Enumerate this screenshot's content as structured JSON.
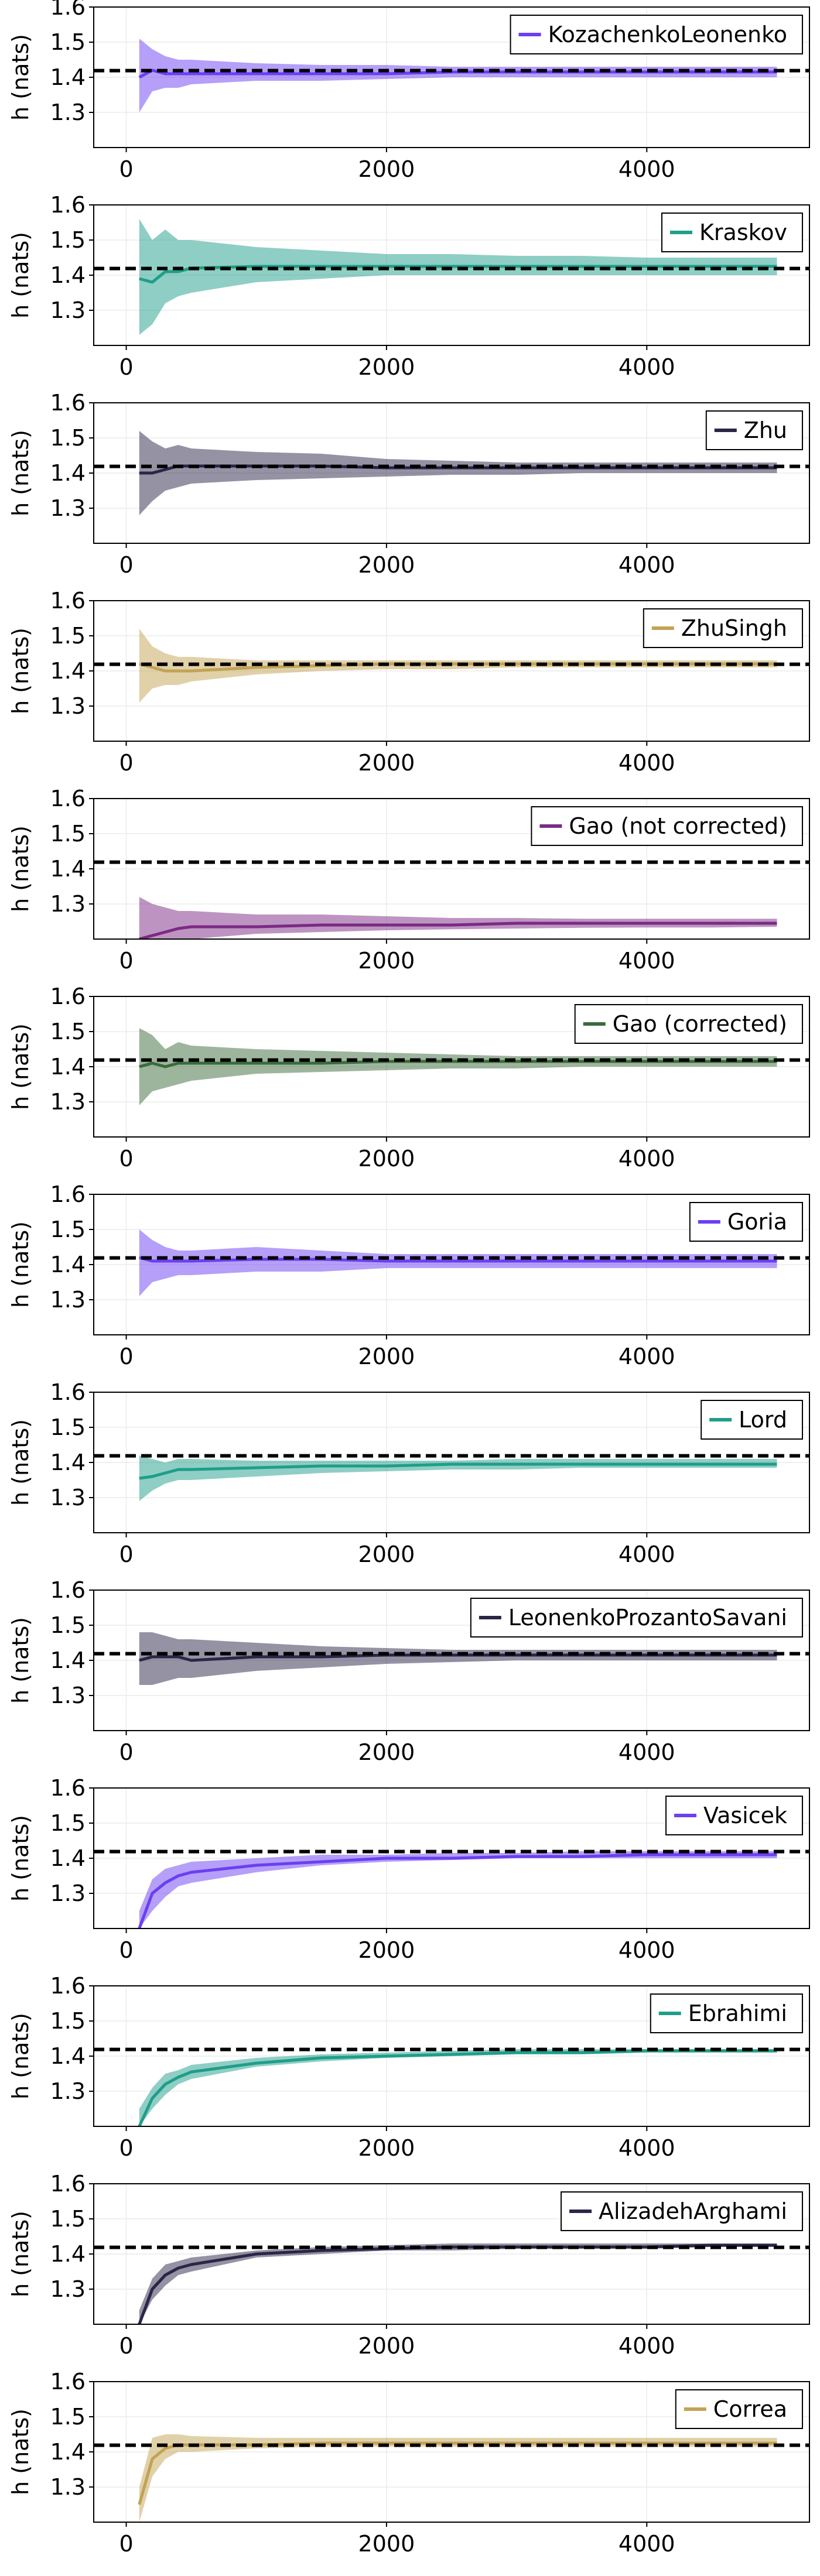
{
  "figure": {
    "ylabel": "h (nats)",
    "reference_label": "",
    "reference_color": "#000000",
    "band_opacity": 0.5
  },
  "chart_data": [
    {
      "type": "line",
      "name": "KozachenkoLeonenko",
      "color": "#6b3ff2",
      "xlim": [
        -250,
        5250
      ],
      "ylim": [
        1.2,
        1.6
      ],
      "xticks": [
        0,
        2000,
        4000
      ],
      "yticks": [
        1.3,
        1.4,
        1.5,
        1.6
      ],
      "reference_y": 1.419,
      "legend_position": "top-right",
      "grid": true,
      "x": [
        100,
        200,
        300,
        400,
        500,
        1000,
        1500,
        2000,
        2500,
        3000,
        3500,
        4000,
        4500,
        5000
      ],
      "mean": [
        1.4,
        1.42,
        1.41,
        1.41,
        1.41,
        1.41,
        1.41,
        1.41,
        1.415,
        1.415,
        1.415,
        1.415,
        1.415,
        1.415
      ],
      "lower": [
        1.3,
        1.36,
        1.37,
        1.37,
        1.38,
        1.39,
        1.39,
        1.395,
        1.4,
        1.4,
        1.4,
        1.4,
        1.4,
        1.4
      ],
      "upper": [
        1.51,
        1.48,
        1.46,
        1.45,
        1.45,
        1.44,
        1.435,
        1.435,
        1.43,
        1.43,
        1.43,
        1.43,
        1.43,
        1.43
      ]
    },
    {
      "type": "line",
      "name": "Kraskov",
      "color": "#1f9e89",
      "xlim": [
        -250,
        5250
      ],
      "ylim": [
        1.2,
        1.6
      ],
      "xticks": [
        0,
        2000,
        4000
      ],
      "yticks": [
        1.3,
        1.4,
        1.5,
        1.6
      ],
      "reference_y": 1.419,
      "legend_position": "top-right",
      "grid": true,
      "x": [
        100,
        200,
        300,
        400,
        500,
        1000,
        1500,
        2000,
        2500,
        3000,
        3500,
        4000,
        4500,
        5000
      ],
      "mean": [
        1.39,
        1.38,
        1.41,
        1.41,
        1.42,
        1.425,
        1.425,
        1.425,
        1.425,
        1.425,
        1.425,
        1.425,
        1.425,
        1.425
      ],
      "lower": [
        1.23,
        1.26,
        1.32,
        1.34,
        1.35,
        1.38,
        1.39,
        1.4,
        1.4,
        1.4,
        1.4,
        1.4,
        1.4,
        1.4
      ],
      "upper": [
        1.56,
        1.5,
        1.53,
        1.5,
        1.5,
        1.48,
        1.47,
        1.46,
        1.46,
        1.455,
        1.455,
        1.45,
        1.45,
        1.45
      ]
    },
    {
      "type": "line",
      "name": "Zhu",
      "color": "#2a2647",
      "xlim": [
        -250,
        5250
      ],
      "ylim": [
        1.2,
        1.6
      ],
      "xticks": [
        0,
        2000,
        4000
      ],
      "yticks": [
        1.3,
        1.4,
        1.5,
        1.6
      ],
      "reference_y": 1.419,
      "legend_position": "top-right",
      "grid": true,
      "x": [
        100,
        200,
        300,
        400,
        500,
        1000,
        1500,
        2000,
        2500,
        3000,
        3500,
        4000,
        4500,
        5000
      ],
      "mean": [
        1.4,
        1.4,
        1.41,
        1.42,
        1.42,
        1.42,
        1.42,
        1.415,
        1.415,
        1.415,
        1.415,
        1.415,
        1.415,
        1.415
      ],
      "lower": [
        1.28,
        1.32,
        1.35,
        1.36,
        1.37,
        1.38,
        1.385,
        1.39,
        1.395,
        1.395,
        1.4,
        1.4,
        1.4,
        1.4
      ],
      "upper": [
        1.52,
        1.49,
        1.47,
        1.48,
        1.47,
        1.46,
        1.455,
        1.44,
        1.435,
        1.43,
        1.43,
        1.43,
        1.43,
        1.43
      ]
    },
    {
      "type": "line",
      "name": "ZhuSingh",
      "color": "#c2a354",
      "xlim": [
        -250,
        5250
      ],
      "ylim": [
        1.2,
        1.6
      ],
      "xticks": [
        0,
        2000,
        4000
      ],
      "yticks": [
        1.3,
        1.4,
        1.5,
        1.6
      ],
      "reference_y": 1.419,
      "legend_position": "top-right",
      "grid": true,
      "x": [
        100,
        200,
        300,
        400,
        500,
        1000,
        1500,
        2000,
        2500,
        3000,
        3500,
        4000,
        4500,
        5000
      ],
      "mean": [
        1.42,
        1.41,
        1.4,
        1.4,
        1.4,
        1.41,
        1.415,
        1.42,
        1.42,
        1.42,
        1.42,
        1.42,
        1.42,
        1.42
      ],
      "lower": [
        1.31,
        1.35,
        1.36,
        1.36,
        1.37,
        1.39,
        1.4,
        1.405,
        1.405,
        1.41,
        1.41,
        1.41,
        1.41,
        1.41
      ],
      "upper": [
        1.52,
        1.47,
        1.45,
        1.44,
        1.44,
        1.43,
        1.43,
        1.43,
        1.43,
        1.43,
        1.43,
        1.43,
        1.43,
        1.43
      ]
    },
    {
      "type": "line",
      "name": "Gao (not corrected)",
      "color": "#7b2a84",
      "xlim": [
        -250,
        5250
      ],
      "ylim": [
        1.2,
        1.6
      ],
      "xticks": [
        0,
        2000,
        4000
      ],
      "yticks": [
        1.3,
        1.4,
        1.5,
        1.6
      ],
      "reference_y": 1.419,
      "legend_position": "top-right",
      "grid": true,
      "x": [
        100,
        200,
        300,
        400,
        500,
        1000,
        1500,
        2000,
        2500,
        3000,
        3500,
        4000,
        4500,
        5000
      ],
      "mean": [
        1.2,
        1.21,
        1.22,
        1.23,
        1.235,
        1.235,
        1.24,
        1.24,
        1.24,
        1.245,
        1.245,
        1.245,
        1.245,
        1.245
      ],
      "lower": [
        1.2,
        1.2,
        1.2,
        1.2,
        1.2,
        1.215,
        1.22,
        1.225,
        1.228,
        1.23,
        1.232,
        1.233,
        1.233,
        1.235
      ],
      "upper": [
        1.32,
        1.3,
        1.29,
        1.28,
        1.28,
        1.27,
        1.27,
        1.265,
        1.26,
        1.26,
        1.258,
        1.258,
        1.258,
        1.258
      ]
    },
    {
      "type": "line",
      "name": "Gao (corrected)",
      "color": "#3b6b3b",
      "xlim": [
        -250,
        5250
      ],
      "ylim": [
        1.2,
        1.6
      ],
      "xticks": [
        0,
        2000,
        4000
      ],
      "yticks": [
        1.3,
        1.4,
        1.5,
        1.6
      ],
      "reference_y": 1.419,
      "legend_position": "top-right",
      "grid": true,
      "x": [
        100,
        200,
        300,
        400,
        500,
        1000,
        1500,
        2000,
        2500,
        3000,
        3500,
        4000,
        4500,
        5000
      ],
      "mean": [
        1.4,
        1.41,
        1.4,
        1.41,
        1.41,
        1.41,
        1.41,
        1.415,
        1.415,
        1.415,
        1.415,
        1.415,
        1.415,
        1.415
      ],
      "lower": [
        1.29,
        1.33,
        1.34,
        1.35,
        1.36,
        1.38,
        1.385,
        1.39,
        1.395,
        1.395,
        1.4,
        1.4,
        1.4,
        1.4
      ],
      "upper": [
        1.51,
        1.49,
        1.45,
        1.47,
        1.46,
        1.45,
        1.445,
        1.44,
        1.435,
        1.43,
        1.43,
        1.43,
        1.43,
        1.43
      ]
    },
    {
      "type": "line",
      "name": "Goria",
      "color": "#6b3ff2",
      "xlim": [
        -250,
        5250
      ],
      "ylim": [
        1.2,
        1.6
      ],
      "xticks": [
        0,
        2000,
        4000
      ],
      "yticks": [
        1.3,
        1.4,
        1.5,
        1.6
      ],
      "reference_y": 1.419,
      "legend_position": "top-right",
      "grid": true,
      "x": [
        100,
        200,
        300,
        400,
        500,
        1000,
        1500,
        2000,
        2500,
        3000,
        3500,
        4000,
        4500,
        5000
      ],
      "mean": [
        1.42,
        1.41,
        1.41,
        1.41,
        1.41,
        1.415,
        1.415,
        1.41,
        1.41,
        1.41,
        1.41,
        1.41,
        1.41,
        1.41
      ],
      "lower": [
        1.31,
        1.35,
        1.36,
        1.37,
        1.37,
        1.38,
        1.38,
        1.39,
        1.39,
        1.39,
        1.39,
        1.39,
        1.39,
        1.39
      ],
      "upper": [
        1.5,
        1.47,
        1.45,
        1.44,
        1.44,
        1.45,
        1.44,
        1.43,
        1.43,
        1.43,
        1.43,
        1.43,
        1.43,
        1.43
      ]
    },
    {
      "type": "line",
      "name": "Lord",
      "color": "#1f9e89",
      "xlim": [
        -250,
        5250
      ],
      "ylim": [
        1.2,
        1.6
      ],
      "xticks": [
        0,
        2000,
        4000
      ],
      "yticks": [
        1.3,
        1.4,
        1.5,
        1.6
      ],
      "reference_y": 1.419,
      "legend_position": "top-right",
      "grid": true,
      "x": [
        100,
        200,
        300,
        400,
        500,
        1000,
        1500,
        2000,
        2500,
        3000,
        3500,
        4000,
        4500,
        5000
      ],
      "mean": [
        1.355,
        1.36,
        1.37,
        1.38,
        1.38,
        1.385,
        1.39,
        1.39,
        1.395,
        1.395,
        1.395,
        1.395,
        1.395,
        1.395
      ],
      "lower": [
        1.29,
        1.32,
        1.34,
        1.35,
        1.35,
        1.36,
        1.37,
        1.375,
        1.38,
        1.38,
        1.385,
        1.385,
        1.385,
        1.385
      ],
      "upper": [
        1.42,
        1.41,
        1.4,
        1.41,
        1.41,
        1.405,
        1.405,
        1.405,
        1.405,
        1.41,
        1.41,
        1.41,
        1.41,
        1.41
      ]
    },
    {
      "type": "line",
      "name": "LeonenkoProzantoSavani",
      "color": "#2a2647",
      "xlim": [
        -250,
        5250
      ],
      "ylim": [
        1.2,
        1.6
      ],
      "xticks": [
        0,
        2000,
        4000
      ],
      "yticks": [
        1.3,
        1.4,
        1.5,
        1.6
      ],
      "reference_y": 1.419,
      "legend_position": "top-right",
      "grid": true,
      "x": [
        100,
        200,
        300,
        400,
        500,
        1000,
        1500,
        2000,
        2500,
        3000,
        3500,
        4000,
        4500,
        5000
      ],
      "mean": [
        1.4,
        1.41,
        1.41,
        1.41,
        1.4,
        1.41,
        1.41,
        1.415,
        1.415,
        1.415,
        1.415,
        1.415,
        1.415,
        1.415
      ],
      "lower": [
        1.33,
        1.33,
        1.34,
        1.35,
        1.35,
        1.37,
        1.38,
        1.39,
        1.395,
        1.4,
        1.4,
        1.4,
        1.4,
        1.4
      ],
      "upper": [
        1.48,
        1.48,
        1.47,
        1.46,
        1.46,
        1.45,
        1.44,
        1.435,
        1.43,
        1.43,
        1.43,
        1.43,
        1.43,
        1.43
      ]
    },
    {
      "type": "line",
      "name": "Vasicek",
      "color": "#6b3ff2",
      "xlim": [
        -250,
        5250
      ],
      "ylim": [
        1.2,
        1.6
      ],
      "xticks": [
        0,
        2000,
        4000
      ],
      "yticks": [
        1.3,
        1.4,
        1.5,
        1.6
      ],
      "reference_y": 1.419,
      "legend_position": "top-right",
      "grid": true,
      "x": [
        100,
        200,
        300,
        400,
        500,
        1000,
        1500,
        2000,
        2500,
        3000,
        3500,
        4000,
        4500,
        5000
      ],
      "mean": [
        1.2,
        1.3,
        1.33,
        1.35,
        1.36,
        1.38,
        1.39,
        1.4,
        1.4,
        1.405,
        1.405,
        1.41,
        1.41,
        1.41
      ],
      "lower": [
        1.2,
        1.25,
        1.29,
        1.32,
        1.33,
        1.36,
        1.38,
        1.39,
        1.395,
        1.4,
        1.4,
        1.4,
        1.4,
        1.4
      ],
      "upper": [
        1.25,
        1.34,
        1.37,
        1.38,
        1.39,
        1.4,
        1.41,
        1.41,
        1.415,
        1.415,
        1.42,
        1.42,
        1.42,
        1.42
      ]
    },
    {
      "type": "line",
      "name": "Ebrahimi",
      "color": "#1f9e89",
      "xlim": [
        -250,
        5250
      ],
      "ylim": [
        1.2,
        1.6
      ],
      "xticks": [
        0,
        2000,
        4000
      ],
      "yticks": [
        1.3,
        1.4,
        1.5,
        1.6
      ],
      "reference_y": 1.419,
      "legend_position": "top-right",
      "grid": true,
      "x": [
        100,
        200,
        300,
        400,
        500,
        1000,
        1500,
        2000,
        2500,
        3000,
        3500,
        4000,
        4500,
        5000
      ],
      "mean": [
        1.2,
        1.28,
        1.32,
        1.34,
        1.355,
        1.38,
        1.395,
        1.4,
        1.405,
        1.41,
        1.41,
        1.415,
        1.415,
        1.415
      ],
      "lower": [
        1.2,
        1.25,
        1.29,
        1.32,
        1.335,
        1.37,
        1.385,
        1.395,
        1.4,
        1.405,
        1.405,
        1.41,
        1.41,
        1.41
      ],
      "upper": [
        1.25,
        1.31,
        1.35,
        1.36,
        1.375,
        1.395,
        1.405,
        1.41,
        1.415,
        1.42,
        1.42,
        1.42,
        1.42,
        1.42
      ]
    },
    {
      "type": "line",
      "name": "AlizadehArghami",
      "color": "#2a2647",
      "xlim": [
        -250,
        5250
      ],
      "ylim": [
        1.2,
        1.6
      ],
      "xticks": [
        0,
        2000,
        4000
      ],
      "yticks": [
        1.3,
        1.4,
        1.5,
        1.6
      ],
      "reference_y": 1.419,
      "legend_position": "top-right",
      "grid": true,
      "x": [
        100,
        200,
        300,
        400,
        500,
        1000,
        1500,
        2000,
        2500,
        3000,
        3500,
        4000,
        4500,
        5000
      ],
      "mean": [
        1.2,
        1.3,
        1.34,
        1.36,
        1.37,
        1.4,
        1.41,
        1.415,
        1.42,
        1.42,
        1.42,
        1.42,
        1.425,
        1.425
      ],
      "lower": [
        1.2,
        1.27,
        1.31,
        1.34,
        1.35,
        1.39,
        1.4,
        1.41,
        1.41,
        1.415,
        1.415,
        1.415,
        1.42,
        1.42
      ],
      "upper": [
        1.24,
        1.33,
        1.37,
        1.38,
        1.39,
        1.41,
        1.42,
        1.425,
        1.43,
        1.43,
        1.43,
        1.43,
        1.43,
        1.43
      ]
    },
    {
      "type": "line",
      "name": "Correa",
      "color": "#c2a354",
      "xlim": [
        -250,
        5250
      ],
      "ylim": [
        1.2,
        1.6
      ],
      "xticks": [
        0,
        2000,
        4000
      ],
      "yticks": [
        1.3,
        1.4,
        1.5,
        1.6
      ],
      "reference_y": 1.419,
      "legend_position": "top-right",
      "grid": true,
      "x": [
        100,
        200,
        300,
        400,
        500,
        1000,
        1500,
        2000,
        2500,
        3000,
        3500,
        4000,
        4500,
        5000
      ],
      "mean": [
        1.25,
        1.38,
        1.41,
        1.42,
        1.42,
        1.42,
        1.425,
        1.425,
        1.425,
        1.425,
        1.425,
        1.425,
        1.425,
        1.425
      ],
      "lower": [
        1.2,
        1.33,
        1.38,
        1.4,
        1.4,
        1.41,
        1.415,
        1.415,
        1.415,
        1.415,
        1.415,
        1.415,
        1.415,
        1.415
      ],
      "upper": [
        1.3,
        1.44,
        1.45,
        1.45,
        1.445,
        1.44,
        1.44,
        1.44,
        1.44,
        1.44,
        1.44,
        1.44,
        1.44,
        1.44
      ]
    }
  ]
}
